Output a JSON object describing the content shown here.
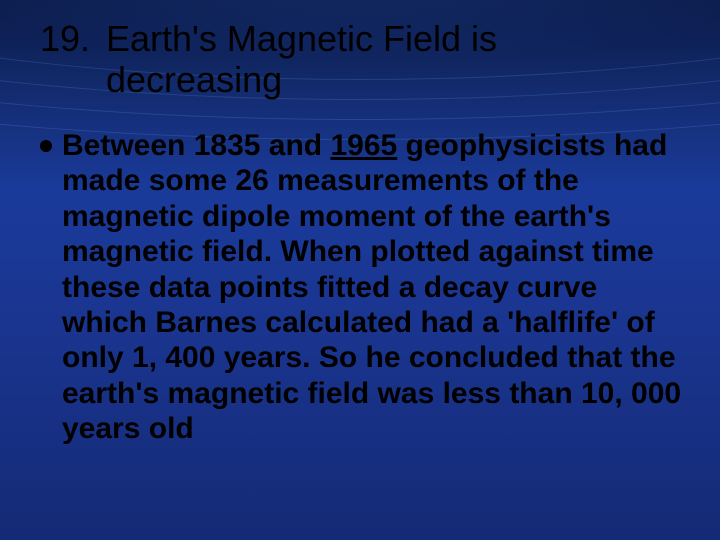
{
  "slide": {
    "number": "19.",
    "title": "Earth's Magnetic Field is decreasing",
    "bullet_pre": "Between 1835 and ",
    "bullet_underlined": "1965",
    "bullet_post": " geophysicists had made some 26 measurements of the magnetic dipole moment of the earth's magnetic field. When plotted against time these data points fitted a decay curve which Barnes calculated had a 'halflife' of only 1, 400 years. So he concluded that the earth's magnetic field was less than 10, 000 years old",
    "colors": {
      "bg_top": "#0a1845",
      "bg_mid": "#1a3a9a",
      "bg_bottom": "#142a75",
      "arc": "rgba(120,170,255,0.18)",
      "text": "#000000",
      "bullet": "#000000"
    },
    "typography": {
      "title_fontsize": 36,
      "body_fontsize": 30,
      "title_family": "Arial",
      "body_family": "Arial",
      "body_weight": "bold"
    }
  }
}
